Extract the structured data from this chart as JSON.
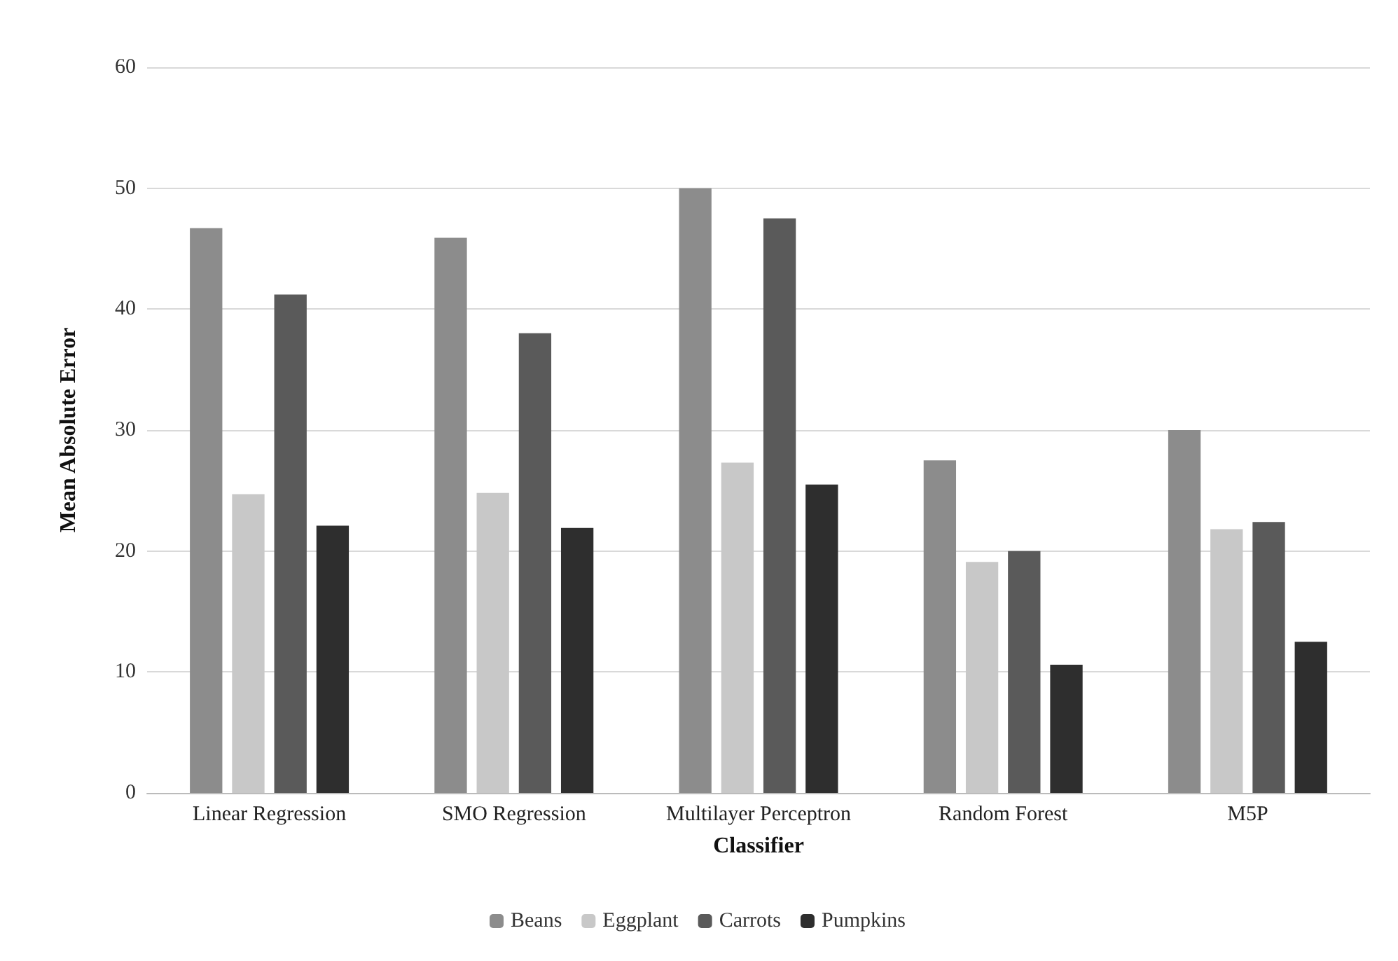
{
  "chart_data": {
    "type": "bar",
    "xlabel": "Classifier",
    "ylabel": "Mean Absolute Error",
    "categories": [
      "Linear Regression",
      "SMO Regression",
      "Multilayer Perceptron",
      "Random Forest",
      "M5P"
    ],
    "series": [
      {
        "name": "Beans",
        "color": "#8c8c8c",
        "values": [
          46.7,
          45.9,
          50.0,
          27.5,
          30.0
        ]
      },
      {
        "name": "Eggplant",
        "color": "#c8c8c8",
        "values": [
          24.7,
          24.8,
          27.3,
          19.1,
          21.8
        ]
      },
      {
        "name": "Carrots",
        "color": "#5a5a5a",
        "values": [
          41.2,
          38.0,
          47.5,
          20.0,
          22.4
        ]
      },
      {
        "name": "Pumpkins",
        "color": "#2e2e2e",
        "values": [
          22.1,
          21.9,
          25.5,
          10.6,
          12.5
        ]
      }
    ],
    "ylim": [
      0,
      60
    ],
    "yticks": [
      0,
      10,
      20,
      30,
      40,
      50,
      60
    ],
    "grid": "y",
    "legend": "bottom"
  }
}
